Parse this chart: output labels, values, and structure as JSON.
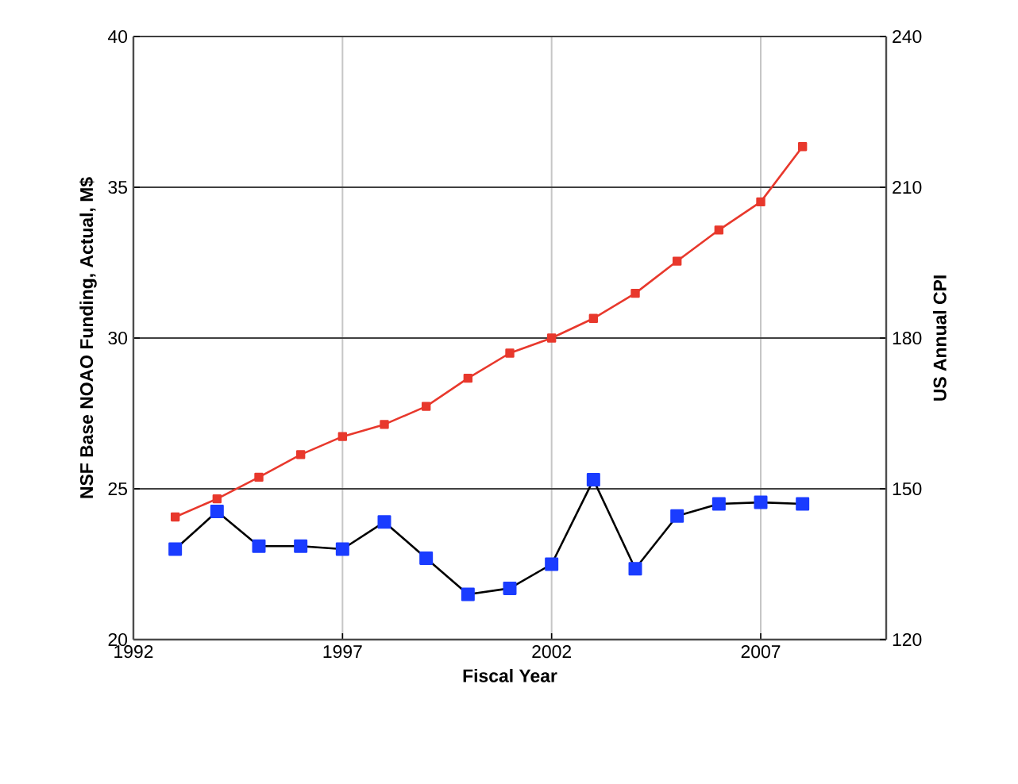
{
  "chart_data": {
    "type": "line",
    "xlabel": "Fiscal Year",
    "ylabel": "NSF Base NOAO Funding, Actual, M$",
    "y2label": "US Annual CPI",
    "x": [
      1993,
      1994,
      1995,
      1996,
      1997,
      1998,
      1999,
      2000,
      2001,
      2002,
      2003,
      2004,
      2005,
      2006,
      2007,
      2008
    ],
    "series": [
      {
        "color": "#1a3cff",
        "values": [
          23.0,
          24.25,
          23.1,
          23.1,
          23.0,
          23.9,
          22.7,
          21.5,
          21.7,
          22.5,
          25.3,
          22.35,
          24.1,
          24.5,
          24.55,
          24.5
        ]
      },
      {
        "color": "#e8382c",
        "axis": "y2",
        "values": [
          144.4,
          148,
          152.3,
          156.8,
          160.4,
          162.8,
          166.4,
          172,
          177,
          180,
          183.9,
          188.9,
          195.3,
          201.5,
          207.1,
          218.1
        ]
      }
    ],
    "xlim": [
      1992,
      2010
    ],
    "xticks": [
      1992,
      1997,
      2002,
      2007
    ],
    "ylim": [
      20,
      40
    ],
    "yticks": [
      20,
      25,
      30,
      35,
      40
    ],
    "y2lim": [
      120,
      240
    ],
    "y2ticks": [
      120,
      150,
      180,
      210,
      240
    ],
    "grid": true,
    "marker": "square",
    "line_style": "solid"
  }
}
